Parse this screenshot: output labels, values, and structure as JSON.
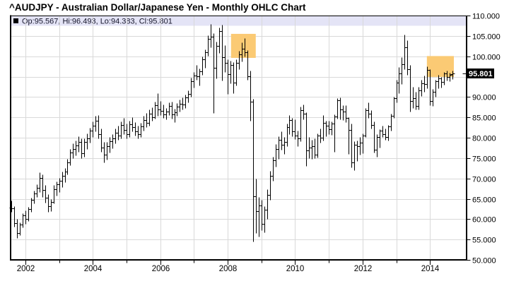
{
  "title": "^AUDJPY - Australian Dollar/Japanese Yen - Monthly OHLC Chart",
  "legend": {
    "marker": "black-square",
    "text": "Op:95.567, Hi:96.493, Lo:94.383, Cl:95.801"
  },
  "price_flag": {
    "label": "95.801",
    "value": 95.801
  },
  "colors": {
    "background": "#ffffff",
    "bar": "#000000",
    "grid": "#d9d9d9",
    "legend_bg": "#e4e4f6",
    "highlight": "#fbca74",
    "axis": "#000000",
    "price_flag_bg": "#000000",
    "price_flag_text": "#ffffff"
  },
  "chart_data": {
    "type": "ohlc",
    "symbol": "^AUDJPY",
    "timeframe": "Monthly",
    "title": "^AUDJPY - Australian Dollar/Japanese Yen - Monthly OHLC Chart",
    "start_month": "2001-08",
    "end_month": "2014-09",
    "ylim": [
      50,
      110
    ],
    "y_tick_step": 5,
    "grid": true,
    "y_tick_labels": [
      "110.000",
      "105.000",
      "100.000",
      "90.000",
      "85.000",
      "80.000",
      "75.000",
      "70.000",
      "65.000",
      "60.000",
      "55.000",
      "50.000"
    ],
    "x_years_major": [
      "2002",
      "2004",
      "2006",
      "2008",
      "2010",
      "2012",
      "2014"
    ],
    "x_years_minor": [
      "2003",
      "2005",
      "2007",
      "2009",
      "2011",
      "2013"
    ],
    "last": {
      "open": 95.567,
      "high": 96.493,
      "low": 94.383,
      "close": 95.801
    },
    "highlights": [
      {
        "start_index": 78.2,
        "end_index": 87.0,
        "price_top": 105.5,
        "price_bottom": 99.6
      },
      {
        "start_index": 147.9,
        "end_index": 157.5,
        "price_top": 100.05,
        "price_bottom": 94.93
      }
    ],
    "bars": [
      [
        62.8,
        64.5,
        61.8,
        62.7
      ],
      [
        62.7,
        63.2,
        58.1,
        59.0
      ],
      [
        59.0,
        60.1,
        55.4,
        56.6
      ],
      [
        56.6,
        59.2,
        56.1,
        58.6
      ],
      [
        58.6,
        61.5,
        57.9,
        60.9
      ],
      [
        60.9,
        62.1,
        58.9,
        60.0
      ],
      [
        60.0,
        63.0,
        59.5,
        62.4
      ],
      [
        62.4,
        65.2,
        61.8,
        64.7
      ],
      [
        64.7,
        67.0,
        63.8,
        66.3
      ],
      [
        66.3,
        68.5,
        65.4,
        67.7
      ],
      [
        67.7,
        71.5,
        66.7,
        70.2
      ],
      [
        70.2,
        70.9,
        65.5,
        67.2
      ],
      [
        67.2,
        68.3,
        64.1,
        65.3
      ],
      [
        65.3,
        66.1,
        61.8,
        63.2
      ],
      [
        63.2,
        65.0,
        61.9,
        64.3
      ],
      [
        64.3,
        68.3,
        63.8,
        67.4
      ],
      [
        67.4,
        69.3,
        65.8,
        68.6
      ],
      [
        68.6,
        70.2,
        66.7,
        69.4
      ],
      [
        69.4,
        71.7,
        67.9,
        70.6
      ],
      [
        70.6,
        72.5,
        69.1,
        71.6
      ],
      [
        71.6,
        74.8,
        71.0,
        73.9
      ],
      [
        73.9,
        77.3,
        73.2,
        76.4
      ],
      [
        76.4,
        78.6,
        74.9,
        77.2
      ],
      [
        77.2,
        79.3,
        75.6,
        78.1
      ],
      [
        78.1,
        80.3,
        76.5,
        79.0
      ],
      [
        79.0,
        79.9,
        74.9,
        76.1
      ],
      [
        76.1,
        79.8,
        75.3,
        78.9
      ],
      [
        78.9,
        81.0,
        77.2,
        79.9
      ],
      [
        79.9,
        82.5,
        78.8,
        81.7
      ],
      [
        81.7,
        84.0,
        80.2,
        82.9
      ],
      [
        82.9,
        85.3,
        81.5,
        84.2
      ],
      [
        84.2,
        85.5,
        79.8,
        80.9
      ],
      [
        80.9,
        82.3,
        76.6,
        77.6
      ],
      [
        77.6,
        78.9,
        73.9,
        75.8
      ],
      [
        75.8,
        78.9,
        74.6,
        77.9
      ],
      [
        77.9,
        80.2,
        76.3,
        79.1
      ],
      [
        79.1,
        80.9,
        77.4,
        79.8
      ],
      [
        79.8,
        82.2,
        78.6,
        81.3
      ],
      [
        81.3,
        83.0,
        79.5,
        80.6
      ],
      [
        80.6,
        84.0,
        79.9,
        83.1
      ],
      [
        83.1,
        84.8,
        80.9,
        81.9
      ],
      [
        81.9,
        83.4,
        79.9,
        80.8
      ],
      [
        80.8,
        84.2,
        80.1,
        83.3
      ],
      [
        83.3,
        85.1,
        81.6,
        82.6
      ],
      [
        82.6,
        83.8,
        80.6,
        81.6
      ],
      [
        81.6,
        82.9,
        79.8,
        80.9
      ],
      [
        80.9,
        83.6,
        80.1,
        82.7
      ],
      [
        82.7,
        85.3,
        81.8,
        84.4
      ],
      [
        84.4,
        86.0,
        82.6,
        83.6
      ],
      [
        83.6,
        86.9,
        82.9,
        85.9
      ],
      [
        85.9,
        87.5,
        84.1,
        85.1
      ],
      [
        85.1,
        88.9,
        84.6,
        87.9
      ],
      [
        87.9,
        90.9,
        85.4,
        86.9
      ],
      [
        86.9,
        89.0,
        85.6,
        86.6
      ],
      [
        86.6,
        88.1,
        84.8,
        85.8
      ],
      [
        85.8,
        87.3,
        84.5,
        86.4
      ],
      [
        86.4,
        88.6,
        85.5,
        87.8
      ],
      [
        87.8,
        88.9,
        84.6,
        85.7
      ],
      [
        85.7,
        87.1,
        83.9,
        86.2
      ],
      [
        86.2,
        88.5,
        85.3,
        87.6
      ],
      [
        87.6,
        89.3,
        86.4,
        88.4
      ],
      [
        88.4,
        89.9,
        87.0,
        88.2
      ],
      [
        88.2,
        90.6,
        87.3,
        89.9
      ],
      [
        89.9,
        91.7,
        88.6,
        90.8
      ],
      [
        90.8,
        94.8,
        90.1,
        93.9
      ],
      [
        93.9,
        96.1,
        92.3,
        95.3
      ],
      [
        95.3,
        97.9,
        94.2,
        95.1
      ],
      [
        95.1,
        97.0,
        92.8,
        96.3
      ],
      [
        96.3,
        100.0,
        95.5,
        99.2
      ],
      [
        99.2,
        101.7,
        97.1,
        100.9
      ],
      [
        100.9,
        105.1,
        100.2,
        104.3
      ],
      [
        104.3,
        107.9,
        102.2,
        104.8
      ],
      [
        104.8,
        105.6,
        86.1,
        97.1
      ],
      [
        97.1,
        103.5,
        94.6,
        102.6
      ],
      [
        102.6,
        107.1,
        100.8,
        106.2
      ],
      [
        106.2,
        107.7,
        94.0,
        99.7
      ],
      [
        99.7,
        102.8,
        96.1,
        98.4
      ],
      [
        98.4,
        99.2,
        90.7,
        95.6
      ],
      [
        95.6,
        98.9,
        93.3,
        97.9
      ],
      [
        97.9,
        98.5,
        90.9,
        93.6
      ],
      [
        93.6,
        99.2,
        92.8,
        98.4
      ],
      [
        98.4,
        101.4,
        96.9,
        100.5
      ],
      [
        100.5,
        103.4,
        98.8,
        101.9
      ],
      [
        101.9,
        104.5,
        99.9,
        100.9
      ],
      [
        100.9,
        101.5,
        94.2,
        95.1
      ],
      [
        95.1,
        96.4,
        84.2,
        88.8
      ],
      [
        88.8,
        89.5,
        54.5,
        65.6
      ],
      [
        65.6,
        69.9,
        56.6,
        62.0
      ],
      [
        62.0,
        65.4,
        55.8,
        63.3
      ],
      [
        63.3,
        64.8,
        57.2,
        58.8
      ],
      [
        58.8,
        63.2,
        56.8,
        62.3
      ],
      [
        62.3,
        67.4,
        60.1,
        65.9
      ],
      [
        65.9,
        71.9,
        64.8,
        70.6
      ],
      [
        70.6,
        75.3,
        69.4,
        74.5
      ],
      [
        74.5,
        78.5,
        72.9,
        77.3
      ],
      [
        77.3,
        80.3,
        74.8,
        79.5
      ],
      [
        79.5,
        81.5,
        77.1,
        78.3
      ],
      [
        78.3,
        80.1,
        76.0,
        78.9
      ],
      [
        78.9,
        83.5,
        78.0,
        82.6
      ],
      [
        82.6,
        85.5,
        80.9,
        84.4
      ],
      [
        84.4,
        84.9,
        80.3,
        81.5
      ],
      [
        81.5,
        84.5,
        79.7,
        80.6
      ],
      [
        80.6,
        81.8,
        77.9,
        79.8
      ],
      [
        79.8,
        87.6,
        79.1,
        86.8
      ],
      [
        86.8,
        88.1,
        84.5,
        85.9
      ],
      [
        85.9,
        86.2,
        73.0,
        76.9
      ],
      [
        76.9,
        80.1,
        74.9,
        77.6
      ],
      [
        77.6,
        79.4,
        74.8,
        78.0
      ],
      [
        78.0,
        79.9,
        74.9,
        75.8
      ],
      [
        75.8,
        81.1,
        75.2,
        80.5
      ],
      [
        80.5,
        82.2,
        78.8,
        80.0
      ],
      [
        80.0,
        85.5,
        79.3,
        83.6
      ],
      [
        83.6,
        84.1,
        80.4,
        83.0
      ],
      [
        83.0,
        84.2,
        80.9,
        82.0
      ],
      [
        82.0,
        84.0,
        80.7,
        83.4
      ],
      [
        83.4,
        85.7,
        76.5,
        85.2
      ],
      [
        85.2,
        89.7,
        84.6,
        89.2
      ],
      [
        89.2,
        89.9,
        84.5,
        86.9
      ],
      [
        86.9,
        87.9,
        84.3,
        86.5
      ],
      [
        86.5,
        88.0,
        83.9,
        84.8
      ],
      [
        84.8,
        85.1,
        76.0,
        81.9
      ],
      [
        81.9,
        83.5,
        72.8,
        74.0
      ],
      [
        74.0,
        79.1,
        72.1,
        78.2
      ],
      [
        78.2,
        79.3,
        74.3,
        78.0
      ],
      [
        78.0,
        80.1,
        75.9,
        78.7
      ],
      [
        78.7,
        81.0,
        76.2,
        80.6
      ],
      [
        80.6,
        87.2,
        80.2,
        86.7
      ],
      [
        86.7,
        88.6,
        84.9,
        85.9
      ],
      [
        85.9,
        86.7,
        82.2,
        83.1
      ],
      [
        83.1,
        84.0,
        76.4,
        77.1
      ],
      [
        77.1,
        80.8,
        75.3,
        80.1
      ],
      [
        80.1,
        82.0,
        77.6,
        81.7
      ],
      [
        81.7,
        83.0,
        80.1,
        80.9
      ],
      [
        80.9,
        82.3,
        79.5,
        80.1
      ],
      [
        80.1,
        83.2,
        79.3,
        82.7
      ],
      [
        82.7,
        85.9,
        81.7,
        85.4
      ],
      [
        85.4,
        90.0,
        84.8,
        89.7
      ],
      [
        89.7,
        94.2,
        88.6,
        93.5
      ],
      [
        93.5,
        97.4,
        90.9,
        95.8
      ],
      [
        95.8,
        99.8,
        93.2,
        98.0
      ],
      [
        98.0,
        105.4,
        96.9,
        102.2
      ],
      [
        102.2,
        103.9,
        95.5,
        96.8
      ],
      [
        96.8,
        97.9,
        86.4,
        89.1
      ],
      [
        89.1,
        92.4,
        87.2,
        89.7
      ],
      [
        89.7,
        91.3,
        86.9,
        87.8
      ],
      [
        87.8,
        92.5,
        87.0,
        91.6
      ],
      [
        91.6,
        94.3,
        90.2,
        93.3
      ],
      [
        93.3,
        95.2,
        91.2,
        93.2
      ],
      [
        93.2,
        97.5,
        92.1,
        96.7
      ],
      [
        96.7,
        96.9,
        87.9,
        89.0
      ],
      [
        89.0,
        92.0,
        87.8,
        91.2
      ],
      [
        91.2,
        94.3,
        90.0,
        93.9
      ],
      [
        93.9,
        95.5,
        92.2,
        94.5
      ],
      [
        94.5,
        95.0,
        92.3,
        93.7
      ],
      [
        93.7,
        96.2,
        93.0,
        95.7
      ],
      [
        95.7,
        96.5,
        94.1,
        94.9
      ],
      [
        94.9,
        95.9,
        93.9,
        95.5
      ],
      [
        95.567,
        96.493,
        94.383,
        95.801
      ]
    ]
  }
}
